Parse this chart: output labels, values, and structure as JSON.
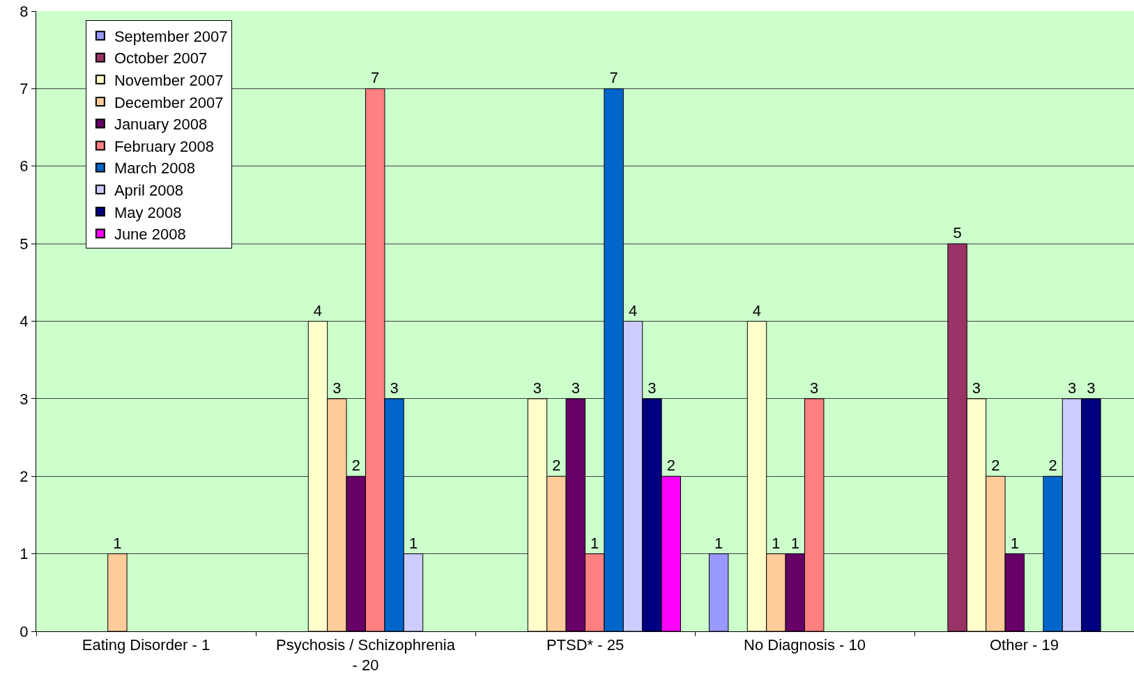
{
  "chart_data": {
    "type": "bar",
    "categories": [
      "Eating Disorder - 1",
      "Psychosis / Schizophrenia - 20",
      "PTSD* - 25",
      "No Diagnosis - 10",
      "Other - 19"
    ],
    "series": [
      {
        "name": "September 2007",
        "color": "#9999ff",
        "values": [
          null,
          null,
          null,
          1,
          null
        ]
      },
      {
        "name": "October 2007",
        "color": "#993366",
        "values": [
          null,
          null,
          null,
          null,
          5
        ]
      },
      {
        "name": "November 2007",
        "color": "#ffffcc",
        "values": [
          null,
          4,
          3,
          4,
          3
        ]
      },
      {
        "name": "December 2007",
        "color": "#ffcc99",
        "values": [
          1,
          3,
          2,
          1,
          2
        ]
      },
      {
        "name": "January 2008",
        "color": "#660066",
        "values": [
          null,
          2,
          3,
          1,
          1
        ]
      },
      {
        "name": "February 2008",
        "color": "#ff8080",
        "values": [
          null,
          7,
          1,
          3,
          null
        ]
      },
      {
        "name": "March 2008",
        "color": "#0066cc",
        "values": [
          null,
          3,
          7,
          null,
          2
        ]
      },
      {
        "name": "April 2008",
        "color": "#ccccff",
        "values": [
          null,
          1,
          4,
          null,
          3
        ]
      },
      {
        "name": "May 2008",
        "color": "#000080",
        "values": [
          null,
          null,
          3,
          null,
          3
        ]
      },
      {
        "name": "June 2008",
        "color": "#ff00ff",
        "values": [
          null,
          null,
          2,
          null,
          null
        ]
      }
    ],
    "ylim": [
      0,
      8
    ],
    "yticks": [
      0,
      1,
      2,
      3,
      4,
      5,
      6,
      7,
      8
    ],
    "grid": "y",
    "legend": "top left",
    "data_labels": true
  }
}
